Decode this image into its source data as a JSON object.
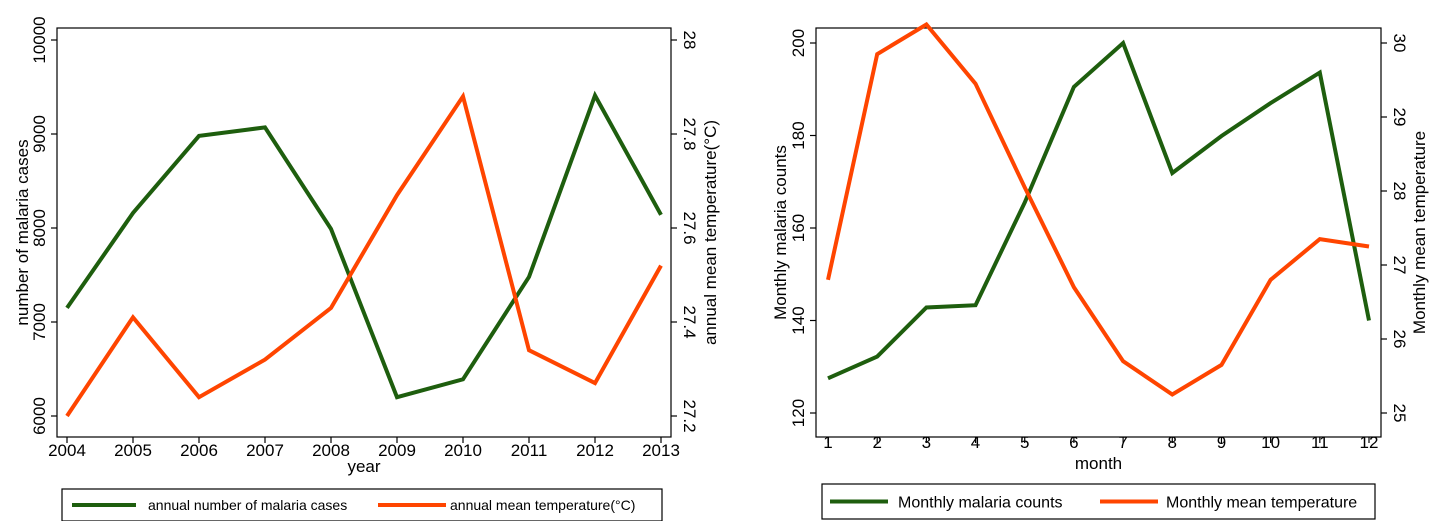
{
  "chart_data": [
    {
      "type": "line",
      "title": "",
      "xlabel": "year",
      "ylabel": "number of malaria cases",
      "y2label": "annual mean temperature(°C)",
      "categories": [
        "2004",
        "2005",
        "2006",
        "2007",
        "2008",
        "2009",
        "2010",
        "2011",
        "2012",
        "2013"
      ],
      "ylim": [
        6000,
        10000
      ],
      "yticks": [
        "6000",
        "7000",
        "8000",
        "9000",
        "10000"
      ],
      "y2lim": [
        27.2,
        28.0
      ],
      "y2ticks": [
        "27.2",
        "27.4",
        "27.6",
        "27.8",
        "28"
      ],
      "series": [
        {
          "name": "annual number of malaria cases",
          "axis": "left",
          "color": "#1e5e0e",
          "values": [
            7150,
            8160,
            8980,
            9070,
            7990,
            6200,
            6390,
            7480,
            9410,
            8140
          ]
        },
        {
          "name": "annual mean temperature(°C)",
          "axis": "right",
          "color": "#ff4500",
          "values": [
            27.2,
            27.41,
            27.24,
            27.32,
            27.43,
            27.67,
            27.88,
            27.34,
            27.27,
            27.52
          ]
        }
      ],
      "grid": false,
      "legend": "bottom"
    },
    {
      "type": "line",
      "title": "",
      "xlabel": "month",
      "ylabel": "Monthly malaria counts",
      "y2label": "Monthly mean temperature",
      "categories": [
        "1",
        "2",
        "3",
        "4",
        "5",
        "6",
        "7",
        "8",
        "9",
        "10",
        "11",
        "12"
      ],
      "ylim": [
        120,
        200
      ],
      "yticks": [
        "120",
        "140",
        "160",
        "180",
        "200"
      ],
      "y2lim": [
        25,
        30
      ],
      "y2ticks": [
        "25",
        "26",
        "27",
        "28",
        "29",
        "30"
      ],
      "series": [
        {
          "name": "Monthly malaria counts",
          "axis": "left",
          "color": "#1e5e0e",
          "values": [
            127.5,
            132.2,
            142.8,
            143.3,
            165.5,
            190.5,
            200,
            171.9,
            179.9,
            187,
            193.6,
            140
          ]
        },
        {
          "name": "Monthly mean temperature",
          "axis": "right",
          "color": "#ff4500",
          "values": [
            26.8,
            29.85,
            30.25,
            29.45,
            28.05,
            26.7,
            25.7,
            25.25,
            25.65,
            26.8,
            27.35,
            27.25
          ]
        }
      ],
      "grid": false,
      "legend": "bottom"
    }
  ]
}
